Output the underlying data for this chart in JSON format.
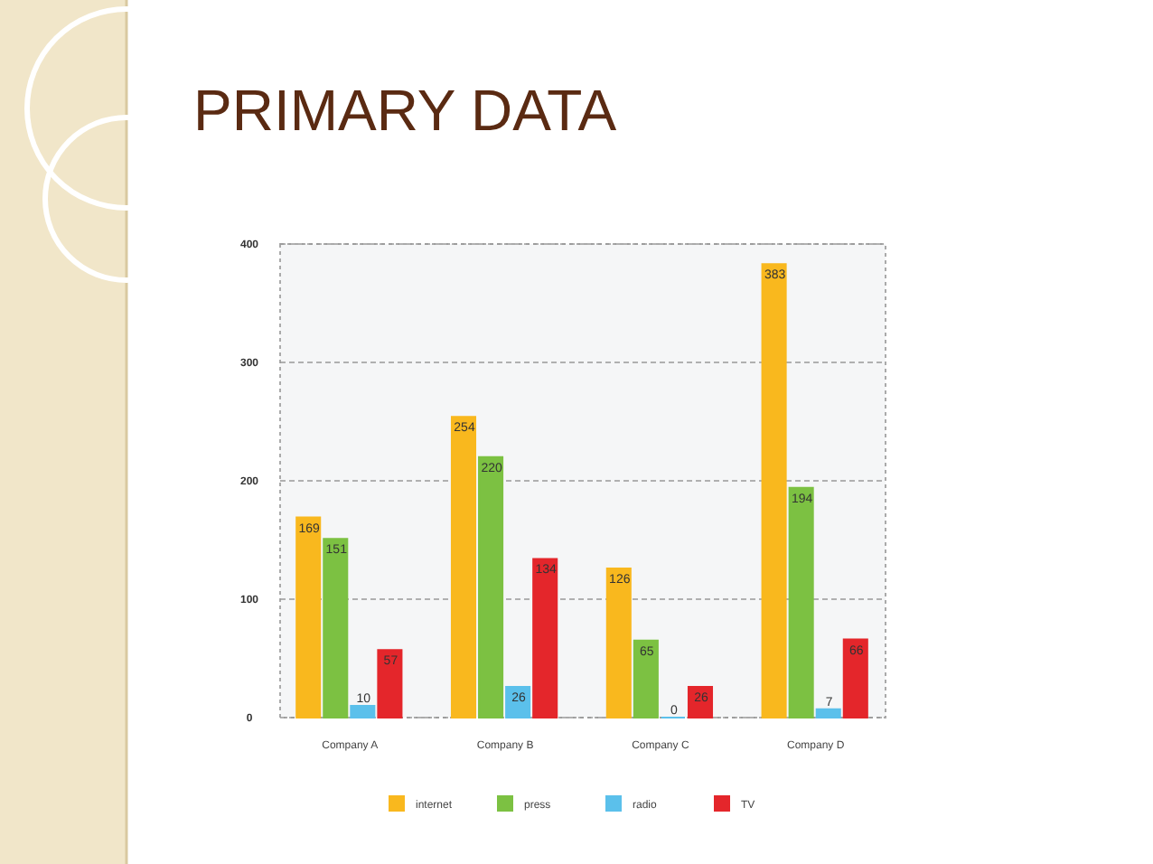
{
  "chart_data": {
    "type": "bar",
    "title": "PRIMARY DATA",
    "categories": [
      "Company A",
      "Company B",
      "Company C",
      "Company D"
    ],
    "series": [
      {
        "name": "internet",
        "color": "#f9b81e",
        "values": [
          169,
          254,
          126,
          383
        ]
      },
      {
        "name": "press",
        "color": "#7cc142",
        "values": [
          151,
          220,
          65,
          194
        ]
      },
      {
        "name": "radio",
        "color": "#5bc0eb",
        "values": [
          10,
          26,
          0,
          7
        ]
      },
      {
        "name": "TV",
        "color": "#e4262b",
        "values": [
          57,
          134,
          26,
          66
        ]
      }
    ],
    "ylim": [
      0,
      400
    ],
    "yticks": [
      0,
      100,
      200,
      300,
      400
    ],
    "grid": "y",
    "legend": "bottom",
    "data_labels": true
  }
}
